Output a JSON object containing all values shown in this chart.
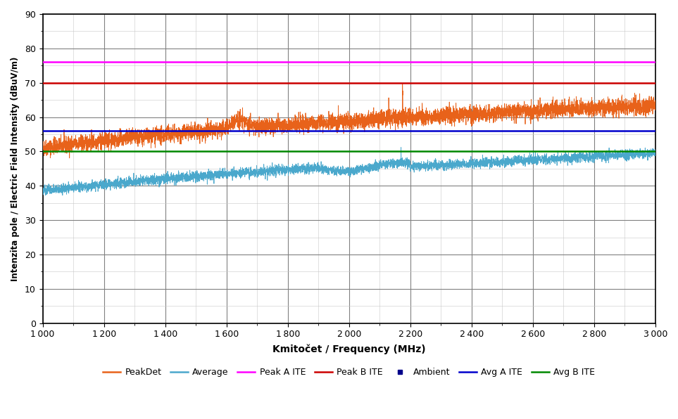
{
  "freq_start": 1000,
  "freq_end": 3000,
  "ylim": [
    0,
    90
  ],
  "yticks": [
    0,
    10,
    20,
    30,
    40,
    50,
    60,
    70,
    80,
    90
  ],
  "xticks": [
    1000,
    1200,
    1400,
    1600,
    1800,
    2000,
    2200,
    2400,
    2600,
    2800,
    3000
  ],
  "xlabel": "Kmitočet / Frequency (MHz)",
  "ylabel": "Intenzita pole / Electric Field Intensity (dBuV/m)",
  "peak_a_ite_level": 76.0,
  "peak_b_ite_level": 70.0,
  "avg_a_ite_level": 56.0,
  "avg_b_ite_level": 50.0,
  "colors": {
    "peak_det": "#E8621A",
    "average": "#4AA8CC",
    "peak_a_ite": "#FF00FF",
    "peak_b_ite": "#CC0000",
    "ambient": "#00008B",
    "avg_a_ite": "#0000CC",
    "avg_b_ite": "#008800"
  },
  "background_color": "#FFFFFF",
  "grid_color_minor": "#C8C8C8",
  "grid_color_major": "#808080"
}
